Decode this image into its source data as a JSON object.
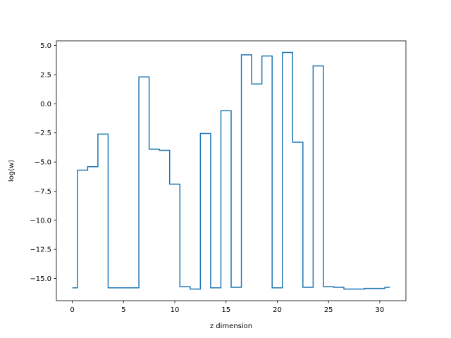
{
  "chart_data": {
    "type": "line",
    "drawstyle": "steps-mid",
    "title": "",
    "xlabel": "z dimension",
    "ylabel": "log(w)",
    "xlim": [
      -1.55,
      32.55
    ],
    "ylim": [
      -16.9,
      5.4
    ],
    "xticks": [
      0,
      5,
      10,
      15,
      20,
      25,
      30
    ],
    "yticks": [
      5.0,
      2.5,
      0.0,
      -2.5,
      -5.0,
      -7.5,
      -10.0,
      -12.5,
      -15.0
    ],
    "xtick_labels": [
      "0",
      "5",
      "10",
      "15",
      "20",
      "25",
      "30"
    ],
    "ytick_labels": [
      "5.0",
      "2.5",
      "0.0",
      "−2.5",
      "−5.0",
      "−7.5",
      "−10.0",
      "−12.5",
      "−15.0"
    ],
    "grid": false,
    "color": "#1f77b4",
    "series": [
      {
        "x": [
          0,
          1,
          2,
          3,
          4,
          5,
          6,
          7,
          8,
          9,
          10,
          11,
          12,
          13,
          14,
          15,
          16,
          17,
          18,
          19,
          20,
          21,
          22,
          23,
          24,
          25,
          26,
          27,
          28,
          29,
          30,
          31
        ],
        "y": [
          -15.8,
          -5.7,
          -5.4,
          -2.6,
          -15.8,
          -15.8,
          -15.8,
          2.3,
          -3.9,
          -4.0,
          -6.9,
          -15.7,
          -15.9,
          -2.55,
          -15.8,
          -0.6,
          -15.75,
          4.2,
          1.7,
          4.1,
          -15.8,
          4.4,
          -3.3,
          -15.75,
          3.25,
          -15.7,
          -15.75,
          -15.9,
          -15.9,
          -15.85,
          -15.85,
          -15.75
        ]
      }
    ]
  }
}
